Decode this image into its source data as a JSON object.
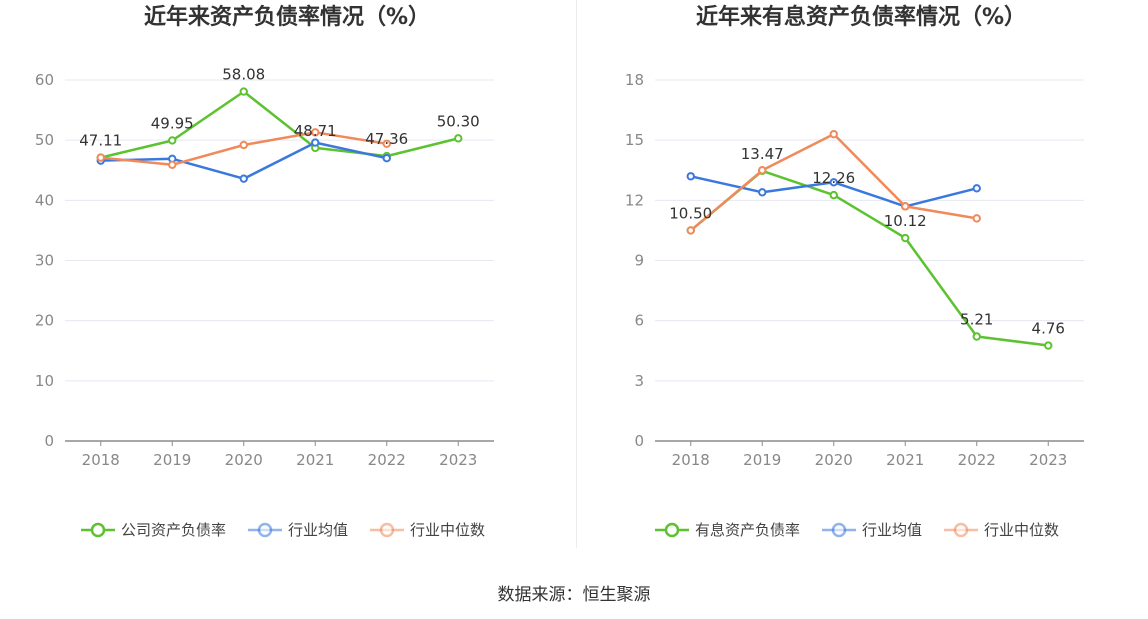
{
  "source_label": "数据来源：恒生聚源",
  "chart_data": [
    {
      "type": "line",
      "title": "近年来资产负债率情况（%）",
      "categories": [
        "2018",
        "2019",
        "2020",
        "2021",
        "2022",
        "2023"
      ],
      "ylim": [
        0,
        60
      ],
      "yticks": [
        0,
        10,
        20,
        30,
        40,
        50,
        60
      ],
      "grid": true,
      "legend_position": "bottom",
      "series": [
        {
          "name": "公司资产负债率",
          "color": "#5cc230",
          "values": [
            47.11,
            49.95,
            58.08,
            48.71,
            47.36,
            50.3
          ],
          "labels": [
            "47.11",
            "49.95",
            "58.08",
            "48.71",
            "47.36",
            "50.30"
          ]
        },
        {
          "name": "行业均值",
          "color": "#3a78de",
          "values": [
            46.6,
            46.9,
            43.6,
            49.6,
            47.0,
            null
          ]
        },
        {
          "name": "行业中位数",
          "color": "#f08a5a",
          "values": [
            47.1,
            45.9,
            49.2,
            51.3,
            49.4,
            null
          ]
        }
      ]
    },
    {
      "type": "line",
      "title": "近年来有息资产负债率情况（%）",
      "categories": [
        "2018",
        "2019",
        "2020",
        "2021",
        "2022",
        "2023"
      ],
      "ylim": [
        0,
        18
      ],
      "yticks": [
        0,
        3,
        6,
        9,
        12,
        15,
        18
      ],
      "grid": true,
      "legend_position": "bottom",
      "series": [
        {
          "name": "有息资产负债率",
          "color": "#5cc230",
          "values": [
            10.5,
            13.47,
            12.26,
            10.12,
            5.21,
            4.76
          ],
          "labels": [
            "10.50",
            "13.47",
            "12.26",
            "10.12",
            "5.21",
            "4.76"
          ]
        },
        {
          "name": "行业均值",
          "color": "#3a78de",
          "values": [
            13.2,
            12.4,
            12.9,
            11.7,
            12.6,
            null
          ]
        },
        {
          "name": "行业中位数",
          "color": "#f08a5a",
          "values": [
            10.5,
            13.5,
            15.3,
            11.7,
            11.1,
            null
          ]
        }
      ]
    }
  ]
}
